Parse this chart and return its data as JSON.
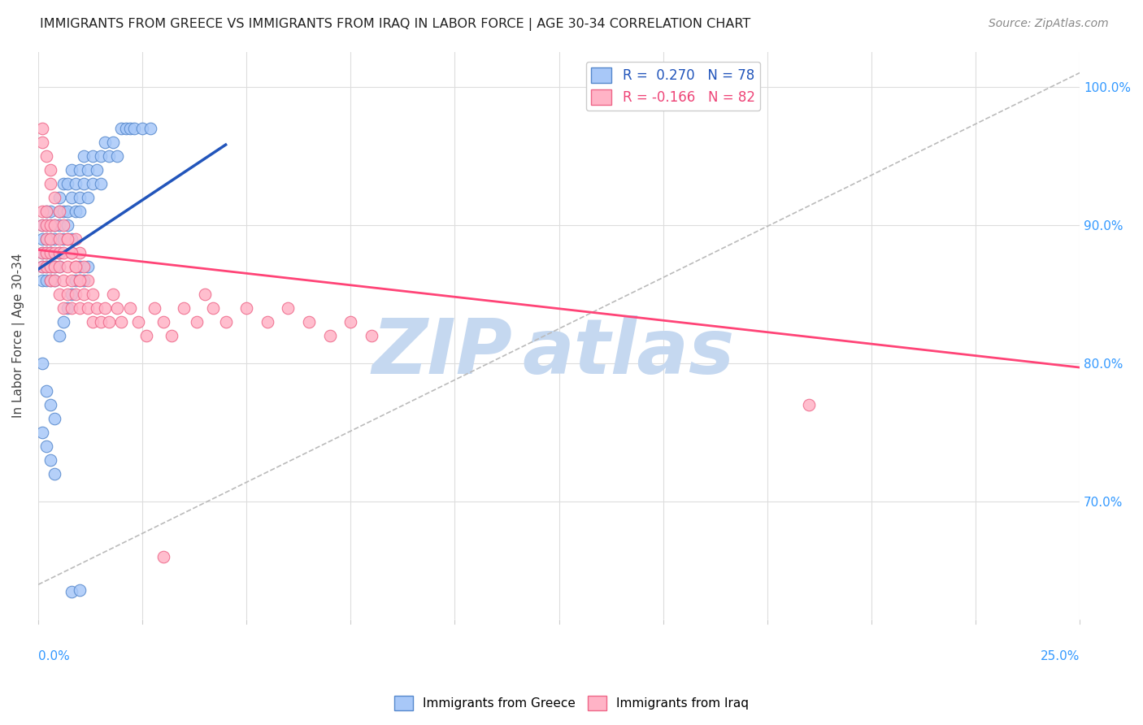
{
  "title": "IMMIGRANTS FROM GREECE VS IMMIGRANTS FROM IRAQ IN LABOR FORCE | AGE 30-34 CORRELATION CHART",
  "source": "Source: ZipAtlas.com",
  "ylabel": "In Labor Force | Age 30-34",
  "xmin": 0.0,
  "xmax": 0.25,
  "ymin": 0.615,
  "ymax": 1.025,
  "right_yticks": [
    0.7,
    0.8,
    0.9,
    1.0
  ],
  "right_yticklabels": [
    "70.0%",
    "80.0%",
    "90.0%",
    "100.0%"
  ],
  "greece_color": "#a8c8f8",
  "greece_edge": "#5588cc",
  "iraq_color": "#ffb3c6",
  "iraq_edge": "#ee6688",
  "trend_greece_color": "#2255bb",
  "trend_iraq_color": "#ff4477",
  "ref_line_color": "#bbbbbb",
  "greece_R": 0.27,
  "greece_N": 78,
  "iraq_R": -0.166,
  "iraq_N": 82,
  "greece_trend_x0": 0.0,
  "greece_trend_y0": 0.868,
  "greece_trend_x1": 0.045,
  "greece_trend_y1": 0.958,
  "iraq_trend_x0": 0.0,
  "iraq_trend_y0": 0.882,
  "iraq_trend_x1": 0.25,
  "iraq_trend_y1": 0.797,
  "ref_line_x0": 0.0,
  "ref_line_y0": 0.64,
  "ref_line_x1": 0.25,
  "ref_line_y1": 1.01,
  "watermark_zip_color": "#c5d8f0",
  "watermark_atlas_color": "#c5d8f0",
  "greece_scatter_x": [
    0.001,
    0.001,
    0.001,
    0.001,
    0.001,
    0.002,
    0.002,
    0.002,
    0.002,
    0.002,
    0.002,
    0.003,
    0.003,
    0.003,
    0.003,
    0.003,
    0.003,
    0.003,
    0.004,
    0.004,
    0.004,
    0.004,
    0.005,
    0.005,
    0.005,
    0.005,
    0.005,
    0.006,
    0.006,
    0.006,
    0.007,
    0.007,
    0.007,
    0.008,
    0.008,
    0.008,
    0.009,
    0.009,
    0.01,
    0.01,
    0.01,
    0.011,
    0.011,
    0.012,
    0.012,
    0.013,
    0.013,
    0.014,
    0.015,
    0.015,
    0.016,
    0.017,
    0.018,
    0.019,
    0.02,
    0.021,
    0.022,
    0.023,
    0.025,
    0.027,
    0.001,
    0.001,
    0.002,
    0.002,
    0.003,
    0.003,
    0.004,
    0.004,
    0.005,
    0.006,
    0.007,
    0.008,
    0.009,
    0.01,
    0.011,
    0.012,
    0.008,
    0.01
  ],
  "greece_scatter_y": [
    0.88,
    0.89,
    0.87,
    0.9,
    0.86,
    0.89,
    0.88,
    0.9,
    0.87,
    0.91,
    0.86,
    0.89,
    0.88,
    0.9,
    0.87,
    0.91,
    0.86,
    0.88,
    0.89,
    0.87,
    0.9,
    0.86,
    0.92,
    0.88,
    0.9,
    0.87,
    0.91,
    0.93,
    0.89,
    0.91,
    0.91,
    0.93,
    0.9,
    0.92,
    0.89,
    0.94,
    0.91,
    0.93,
    0.92,
    0.94,
    0.91,
    0.93,
    0.95,
    0.94,
    0.92,
    0.95,
    0.93,
    0.94,
    0.95,
    0.93,
    0.96,
    0.95,
    0.96,
    0.95,
    0.97,
    0.97,
    0.97,
    0.97,
    0.97,
    0.97,
    0.8,
    0.75,
    0.78,
    0.74,
    0.77,
    0.73,
    0.76,
    0.72,
    0.82,
    0.83,
    0.84,
    0.85,
    0.86,
    0.87,
    0.86,
    0.87,
    0.635,
    0.636
  ],
  "iraq_scatter_x": [
    0.001,
    0.001,
    0.001,
    0.001,
    0.002,
    0.002,
    0.002,
    0.002,
    0.002,
    0.003,
    0.003,
    0.003,
    0.003,
    0.003,
    0.004,
    0.004,
    0.004,
    0.004,
    0.005,
    0.005,
    0.005,
    0.005,
    0.006,
    0.006,
    0.006,
    0.007,
    0.007,
    0.007,
    0.008,
    0.008,
    0.008,
    0.009,
    0.009,
    0.009,
    0.01,
    0.01,
    0.01,
    0.011,
    0.011,
    0.012,
    0.012,
    0.013,
    0.013,
    0.014,
    0.015,
    0.016,
    0.017,
    0.018,
    0.019,
    0.02,
    0.022,
    0.024,
    0.026,
    0.028,
    0.03,
    0.032,
    0.035,
    0.038,
    0.04,
    0.042,
    0.045,
    0.05,
    0.055,
    0.06,
    0.065,
    0.07,
    0.075,
    0.08,
    0.001,
    0.001,
    0.002,
    0.003,
    0.003,
    0.004,
    0.005,
    0.006,
    0.007,
    0.008,
    0.009,
    0.01,
    0.185,
    0.03
  ],
  "iraq_scatter_y": [
    0.91,
    0.88,
    0.9,
    0.87,
    0.89,
    0.91,
    0.87,
    0.9,
    0.88,
    0.88,
    0.9,
    0.86,
    0.89,
    0.87,
    0.88,
    0.9,
    0.86,
    0.87,
    0.87,
    0.89,
    0.85,
    0.88,
    0.86,
    0.88,
    0.84,
    0.87,
    0.85,
    0.89,
    0.86,
    0.88,
    0.84,
    0.87,
    0.85,
    0.89,
    0.86,
    0.84,
    0.88,
    0.85,
    0.87,
    0.86,
    0.84,
    0.85,
    0.83,
    0.84,
    0.83,
    0.84,
    0.83,
    0.85,
    0.84,
    0.83,
    0.84,
    0.83,
    0.82,
    0.84,
    0.83,
    0.82,
    0.84,
    0.83,
    0.85,
    0.84,
    0.83,
    0.84,
    0.83,
    0.84,
    0.83,
    0.82,
    0.83,
    0.82,
    0.97,
    0.96,
    0.95,
    0.94,
    0.93,
    0.92,
    0.91,
    0.9,
    0.89,
    0.88,
    0.87,
    0.86,
    0.77,
    0.66
  ]
}
